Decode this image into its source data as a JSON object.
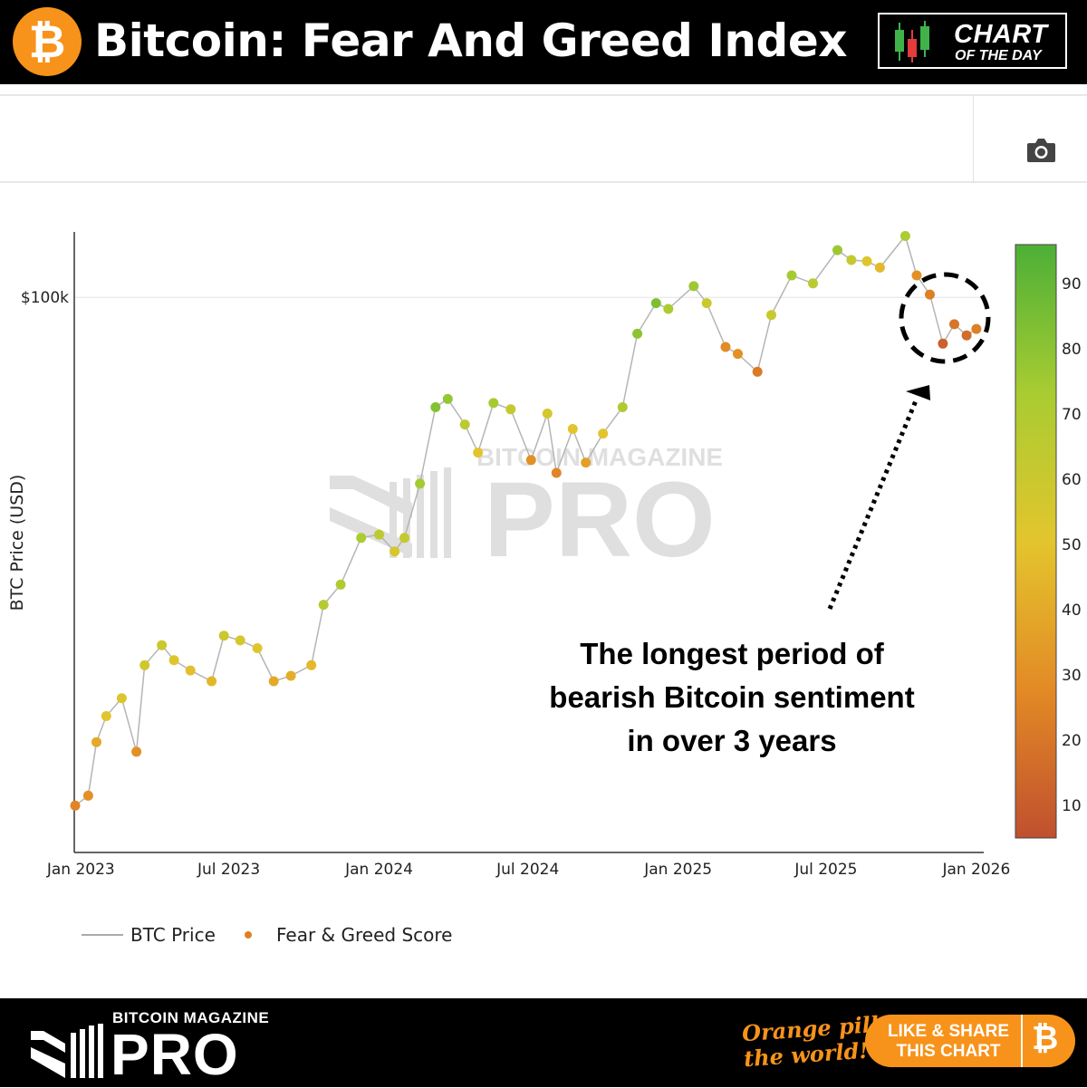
{
  "header": {
    "title": "Bitcoin: Fear And Greed Index",
    "logo_glyph": "₿",
    "badge_line1": "CHART",
    "badge_line2": "OF THE DAY"
  },
  "toolbar": {
    "camera_icon": "camera-icon"
  },
  "chart_data": {
    "type": "scatter",
    "title": "Bitcoin: Fear And Greed Index",
    "ylabel": "BTC Price (USD)",
    "xlabel": "",
    "y_scale": "log",
    "ylim": [
      15000,
      125000
    ],
    "xlim": [
      "2022-12-25",
      "2026-01-10"
    ],
    "y_ticks": [
      {
        "value": 100000,
        "label": "$100k"
      }
    ],
    "x_ticks": [
      {
        "date": "2023-01-01",
        "label": "Jan 2023"
      },
      {
        "date": "2023-07-01",
        "label": "Jul 2023"
      },
      {
        "date": "2024-01-01",
        "label": "Jan 2024"
      },
      {
        "date": "2024-07-01",
        "label": "Jul 2024"
      },
      {
        "date": "2025-01-01",
        "label": "Jan 2025"
      },
      {
        "date": "2025-07-01",
        "label": "Jul 2025"
      },
      {
        "date": "2026-01-01",
        "label": "Jan 2026"
      }
    ],
    "colorbar": {
      "ticks": [
        10,
        20,
        30,
        40,
        50,
        60,
        70,
        80,
        90
      ],
      "range": [
        5,
        96
      ],
      "colors": [
        "#c0502e",
        "#e38a25",
        "#e3c52d",
        "#a8cc32",
        "#4caf37"
      ]
    },
    "legend": [
      {
        "name": "BTC Price",
        "kind": "line",
        "color": "#aaaaaa"
      },
      {
        "name": "Fear & Greed Score",
        "kind": "marker",
        "color": "#e07f22"
      }
    ],
    "series": [
      {
        "name": "BTC Price",
        "color_by": "Fear & Greed Score",
        "points": [
          [
            "2022-12-25",
            16800,
            26
          ],
          [
            "2023-01-10",
            17400,
            30
          ],
          [
            "2023-01-20",
            21000,
            40
          ],
          [
            "2023-02-01",
            23000,
            50
          ],
          [
            "2023-02-20",
            24500,
            54
          ],
          [
            "2023-03-10",
            20300,
            30
          ],
          [
            "2023-03-20",
            27500,
            58
          ],
          [
            "2023-04-10",
            29500,
            60
          ],
          [
            "2023-04-25",
            28000,
            52
          ],
          [
            "2023-05-15",
            27000,
            48
          ],
          [
            "2023-06-10",
            26000,
            45
          ],
          [
            "2023-06-25",
            30500,
            60
          ],
          [
            "2023-07-15",
            30000,
            56
          ],
          [
            "2023-08-05",
            29200,
            52
          ],
          [
            "2023-08-25",
            26000,
            40
          ],
          [
            "2023-09-15",
            26500,
            42
          ],
          [
            "2023-10-10",
            27500,
            46
          ],
          [
            "2023-10-25",
            34000,
            68
          ],
          [
            "2023-11-15",
            36500,
            70
          ],
          [
            "2023-12-10",
            43000,
            72
          ],
          [
            "2024-01-01",
            43500,
            65
          ],
          [
            "2024-01-20",
            41000,
            55
          ],
          [
            "2024-02-01",
            43000,
            62
          ],
          [
            "2024-02-20",
            52000,
            74
          ],
          [
            "2024-03-10",
            68000,
            82
          ],
          [
            "2024-03-25",
            70000,
            78
          ],
          [
            "2024-04-15",
            64000,
            66
          ],
          [
            "2024-05-01",
            58000,
            50
          ],
          [
            "2024-05-20",
            69000,
            74
          ],
          [
            "2024-06-10",
            67500,
            62
          ],
          [
            "2024-07-05",
            56500,
            30
          ],
          [
            "2024-07-25",
            66500,
            56
          ],
          [
            "2024-08-05",
            54000,
            26
          ],
          [
            "2024-08-25",
            63000,
            50
          ],
          [
            "2024-09-10",
            56000,
            36
          ],
          [
            "2024-10-01",
            62000,
            50
          ],
          [
            "2024-10-25",
            68000,
            70
          ],
          [
            "2024-11-12",
            88000,
            80
          ],
          [
            "2024-12-05",
            98000,
            84
          ],
          [
            "2024-12-20",
            96000,
            72
          ],
          [
            "2025-01-20",
            104000,
            76
          ],
          [
            "2025-02-05",
            98000,
            60
          ],
          [
            "2025-02-28",
            84000,
            28
          ],
          [
            "2025-03-15",
            82000,
            30
          ],
          [
            "2025-04-08",
            77000,
            22
          ],
          [
            "2025-04-25",
            94000,
            60
          ],
          [
            "2025-05-20",
            108000,
            74
          ],
          [
            "2025-06-15",
            105000,
            66
          ],
          [
            "2025-07-15",
            118000,
            76
          ],
          [
            "2025-08-01",
            114000,
            62
          ],
          [
            "2025-08-20",
            113500,
            52
          ],
          [
            "2025-09-05",
            111000,
            46
          ],
          [
            "2025-10-06",
            124000,
            72
          ],
          [
            "2025-10-20",
            108000,
            30
          ],
          [
            "2025-11-05",
            101000,
            24
          ],
          [
            "2025-11-21",
            85000,
            12
          ],
          [
            "2025-12-05",
            91000,
            20
          ],
          [
            "2025-12-20",
            87500,
            16
          ],
          [
            "2026-01-01",
            89500,
            24
          ]
        ]
      }
    ],
    "watermark": {
      "top": "BITCOIN MAGAZINE",
      "main": "PRO"
    },
    "annotation": {
      "lines": [
        "The longest period of",
        "bearish Bitcoin sentiment",
        "in over 3 years"
      ]
    }
  },
  "footer": {
    "brand_top": "BITCOIN MAGAZINE",
    "brand_main": "PRO",
    "slogan_1": "Orange pill",
    "slogan_2": "the world!",
    "share_line1": "LIKE & SHARE",
    "share_line2": "THIS CHART",
    "btc_glyph": "₿"
  }
}
